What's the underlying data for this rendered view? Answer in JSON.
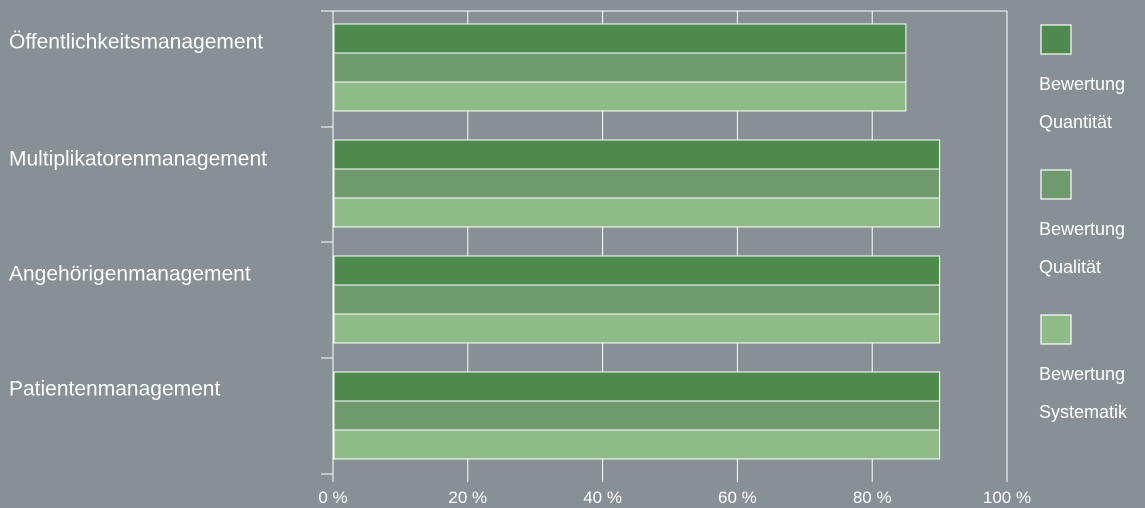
{
  "chart_data": {
    "type": "bar",
    "orientation": "horizontal",
    "categories": [
      "Öffentlichkeitsmanagement",
      "Multiplikatorenmanagement",
      "Angehörigenmanagement",
      "Patientenmanagement"
    ],
    "series": [
      {
        "name": "Bewertung Quantität",
        "legend_lines": [
          "Bewertung",
          "Quantität"
        ],
        "color": "#4e8a4e",
        "values": [
          85,
          90,
          90,
          90
        ]
      },
      {
        "name": "Bewertung Qualität",
        "legend_lines": [
          "Bewertung",
          "Qualität"
        ],
        "color": "#6f9a6e",
        "values": [
          85,
          90,
          90,
          90
        ]
      },
      {
        "name": "Bewertung Systematik",
        "legend_lines": [
          "Bewertung",
          "Systematik"
        ],
        "color": "#8fbb88",
        "values": [
          85,
          90,
          90,
          90
        ]
      }
    ],
    "xlim": [
      0,
      100
    ],
    "xticks": [
      0,
      20,
      40,
      60,
      80,
      100
    ],
    "xtick_labels": [
      "0 %",
      "20 %",
      "40 %",
      "60 %",
      "80 %",
      "100 %"
    ],
    "grid": true,
    "legend_position": "right",
    "background": "#879094",
    "title": "",
    "xlabel": "",
    "ylabel": ""
  }
}
